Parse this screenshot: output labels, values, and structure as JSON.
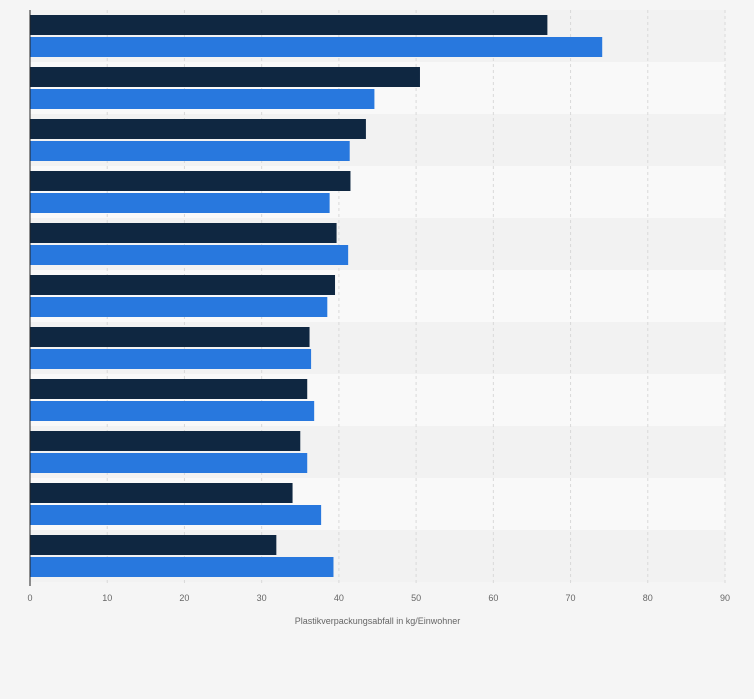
{
  "chart_data": {
    "type": "bar",
    "orientation": "horizontal",
    "title": "",
    "xlabel": "Plastikverpackungsabfall in kg/Einwohner",
    "ylabel": "",
    "xlim": [
      0,
      90
    ],
    "x_ticks": [
      "0",
      "10",
      "20",
      "30",
      "40",
      "50",
      "60",
      "70",
      "80",
      "90"
    ],
    "grid": true,
    "legend": "none",
    "categories": [
      "",
      "",
      "",
      "",
      "",
      "",
      "",
      "",
      "",
      "",
      ""
    ],
    "series": [
      {
        "color": "#0f2741",
        "values": [
          67,
          50.5,
          43.5,
          41.5,
          39.7,
          39.5,
          36.2,
          35.9,
          35,
          34,
          31.9
        ]
      },
      {
        "color": "#2878de",
        "values": [
          74.1,
          44.6,
          41.4,
          38.8,
          41.2,
          38.5,
          36.4,
          36.8,
          35.9,
          37.7,
          39.3
        ]
      }
    ]
  },
  "colors": {
    "background": "#f5f5f5",
    "band_light": "#f9f9f9",
    "band_dark": "#f2f2f2",
    "grid": "#d9d9d9",
    "axis": "#222222",
    "text": "#666666"
  }
}
